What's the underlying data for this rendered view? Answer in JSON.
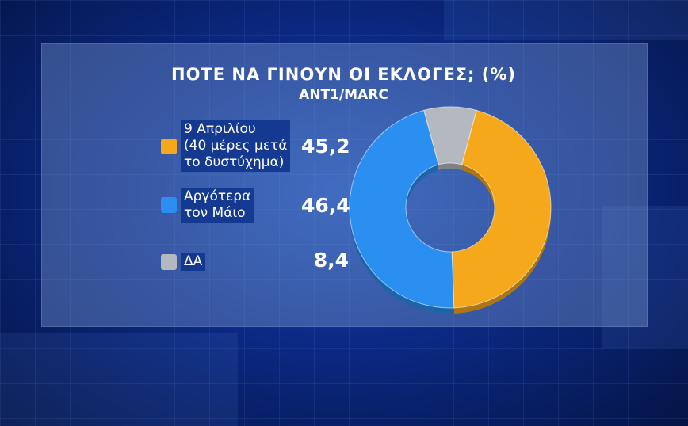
{
  "title": "ΠΟΤΕ ΝΑ ΓΙΝΟΥΝ ΟΙ ΕΚΛΟΓΕΣ; (%)",
  "subtitle": "ANT1/MARC",
  "chart_data": {
    "type": "pie",
    "title": "ΠΟΤΕ ΝΑ ΓΙΝΟΥΝ ΟΙ ΕΚΛΟΓΕΣ; (%)",
    "subtitle": "ANT1/MARC",
    "slices": [
      {
        "label_lines": [
          "9 Απριλίου",
          "(40 μέρες μετά",
          "το δυστύχημα)"
        ],
        "value": 45.2,
        "value_label": "45,2",
        "color": "#f5a81c"
      },
      {
        "label_lines": [
          "Αργότερα",
          "τον Μάιο"
        ],
        "value": 46.4,
        "value_label": "46,4",
        "color": "#2a8ff0"
      },
      {
        "label_lines": [
          "ΔΑ"
        ],
        "value": 8.4,
        "value_label": "8,4",
        "color": "#b4b8bf"
      }
    ],
    "legend_position": "left"
  }
}
